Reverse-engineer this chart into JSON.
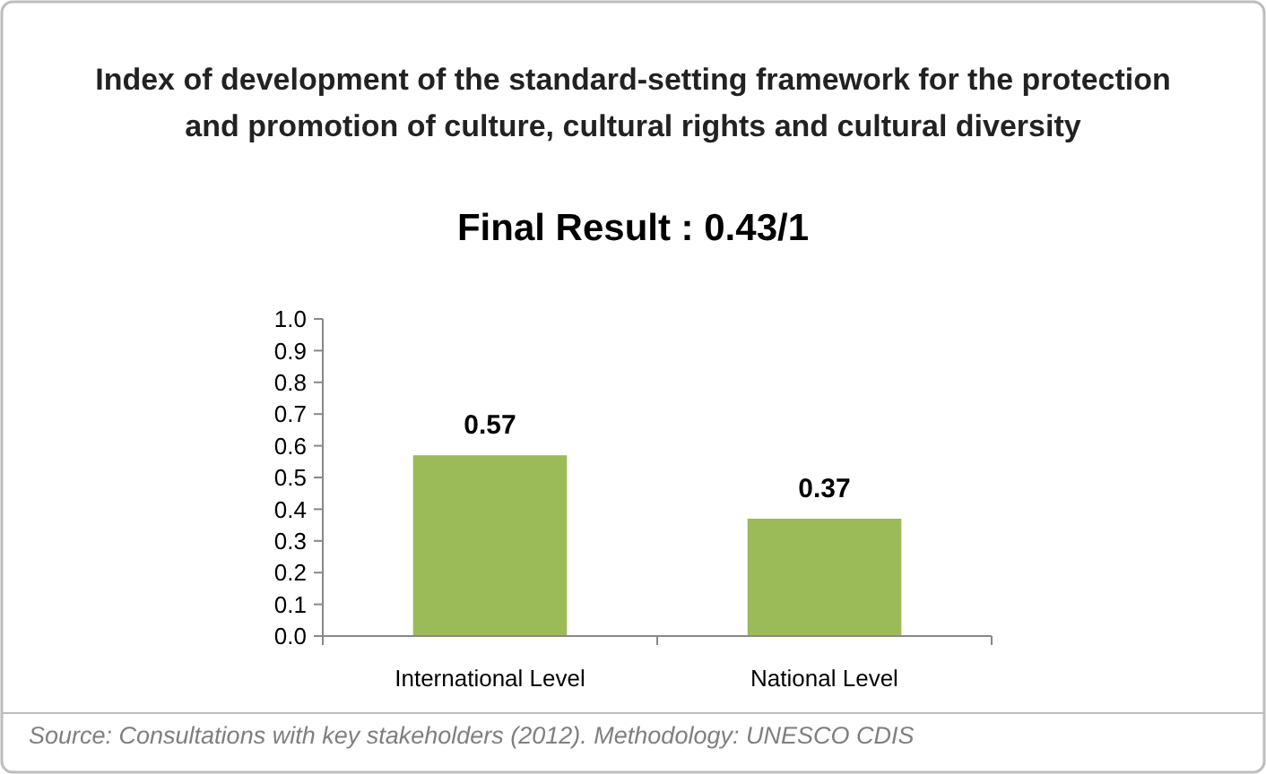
{
  "chart_data": {
    "type": "bar",
    "title": "Index of development of the standard-setting framework for the protection\nand promotion of culture, cultural rights and cultural diversity",
    "subtitle": "Final Result : 0.43/1",
    "categories": [
      "International Level",
      "National Level"
    ],
    "values": [
      0.57,
      0.37
    ],
    "color": "#9bbb59",
    "ylim": [
      0,
      1
    ],
    "yticks": [
      {
        "value": 0,
        "label": "0.0"
      },
      0.1,
      0.2,
      0.3,
      0.4,
      0.5,
      0.6,
      0.7,
      0.8,
      0.9,
      {
        "value": 1,
        "label": "1.0"
      }
    ],
    "grid": false,
    "data_labels": true,
    "annotations": [
      "Source: Consultations with key stakeholders (2012). Methodology: UNESCO CDIS"
    ]
  }
}
